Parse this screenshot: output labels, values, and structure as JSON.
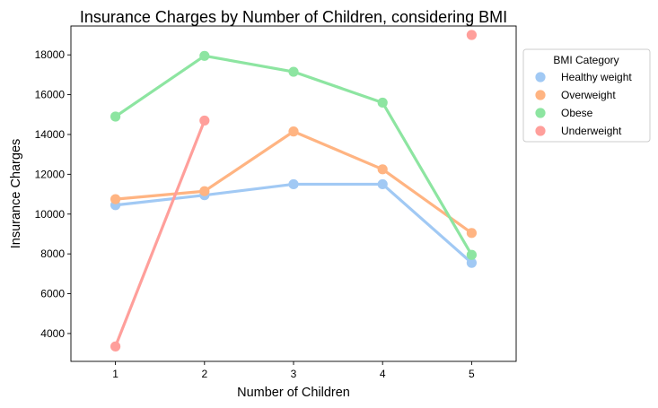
{
  "chart_data": {
    "type": "line",
    "title": "Insurance Charges by Number of Children, considering BMI",
    "xlabel": "Number of Children",
    "ylabel": "Insurance Charges",
    "x": [
      "1",
      "2",
      "3",
      "4",
      "5"
    ],
    "yticks": [
      4000,
      6000,
      8000,
      10000,
      12000,
      14000,
      16000,
      18000
    ],
    "ylim": [
      2600,
      19450
    ],
    "grid": false,
    "legend": {
      "title": "BMI Category",
      "placement": "outside-right-top"
    },
    "series": [
      {
        "name": "Healthy weight",
        "color": "#a1c9f4",
        "values": [
          10450,
          10950,
          11500,
          11500,
          7550
        ]
      },
      {
        "name": "Overweight",
        "color": "#ffb482",
        "values": [
          10750,
          11150,
          14150,
          12250,
          9050
        ]
      },
      {
        "name": "Obese",
        "color": "#8de5a1",
        "values": [
          14900,
          17950,
          17150,
          15600,
          7950
        ]
      },
      {
        "name": "Underweight",
        "color": "#ff9f9b",
        "values": [
          3350,
          14700,
          null,
          null,
          19000
        ]
      }
    ]
  }
}
